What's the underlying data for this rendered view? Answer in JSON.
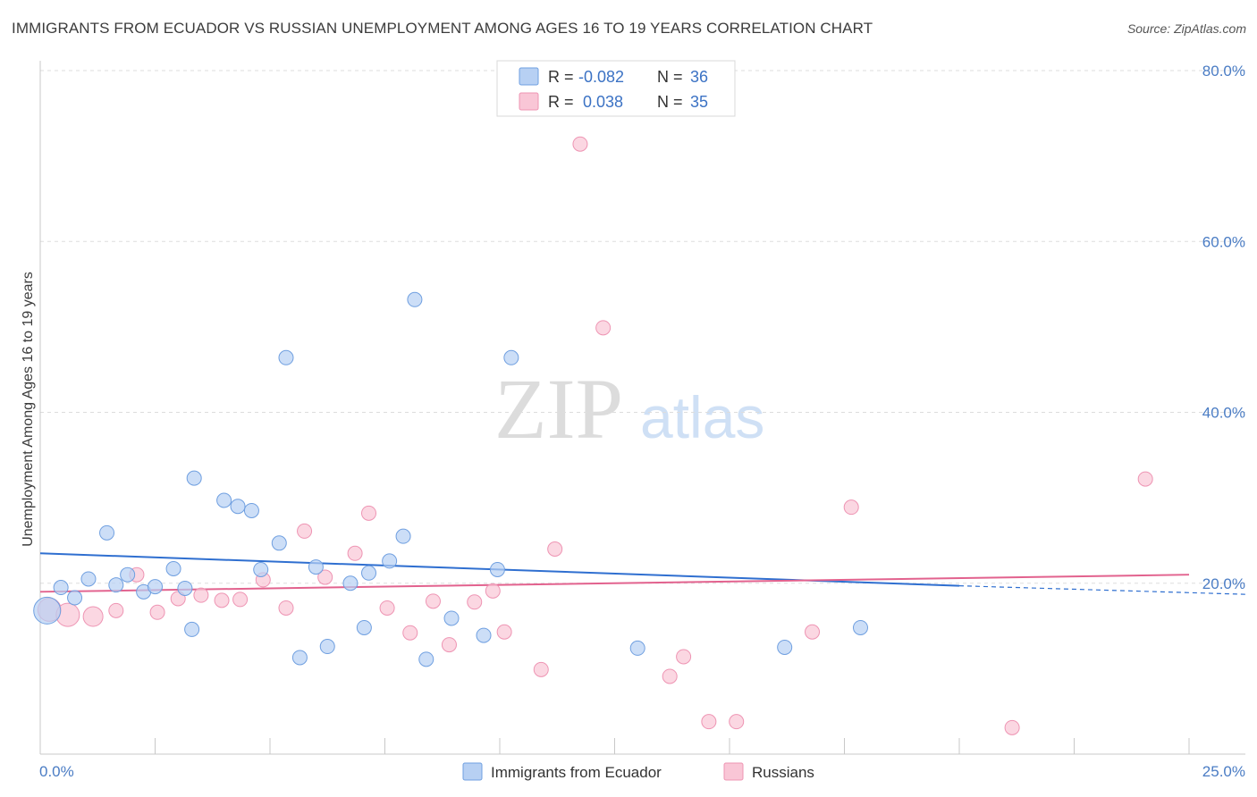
{
  "header": {
    "title": "IMMIGRANTS FROM ECUADOR VS RUSSIAN UNEMPLOYMENT AMONG AGES 16 TO 19 YEARS CORRELATION CHART",
    "source": "Source: ZipAtlas.com"
  },
  "watermark": {
    "zip": "ZIP",
    "atlas": "atlas"
  },
  "legend_box": {
    "rows": [
      {
        "r_label": "R =",
        "r_value": "-0.082",
        "n_label": "N =",
        "n_value": "36"
      },
      {
        "r_label": "R =",
        "r_value": " 0.038",
        "n_label": "N =",
        "n_value": "35"
      }
    ]
  },
  "bottom_legend": {
    "items": [
      "Immigrants from Ecuador",
      "Russians"
    ]
  },
  "colors": {
    "ecuador_fill": "#b7d0f3",
    "ecuador_stroke": "#6f9fe0",
    "ecuador_line": "#2f6fd0",
    "russian_fill": "#f9c6d6",
    "russian_stroke": "#ee94b3",
    "russian_line": "#e2628e",
    "tick_text": "#4a7cc4",
    "grid": "#dddddd"
  },
  "chart_data": {
    "type": "scatter",
    "xlabel": "",
    "ylabel": "Unemployment Among Ages 16 to 19 years",
    "xlim": [
      0,
      25
    ],
    "ylim": [
      0,
      80
    ],
    "y_ticks": [
      {
        "value": 20,
        "label": "20.0%"
      },
      {
        "value": 40,
        "label": "40.0%"
      },
      {
        "value": 60,
        "label": "60.0%"
      },
      {
        "value": 80,
        "label": "80.0%"
      }
    ],
    "x_tick_labels": [
      {
        "value": 0,
        "label": "0.0%"
      },
      {
        "value": 25,
        "label": "25.0%"
      }
    ],
    "x_minor_ticks": [
      2.5,
      5,
      7.5,
      10,
      12.5,
      15,
      17.5,
      20,
      22.5,
      25
    ],
    "grid": true,
    "legend_position": "top-center",
    "series": [
      {
        "name": "Immigrants from Ecuador",
        "r": -0.082,
        "n": 36,
        "trend": {
          "x0": 0,
          "y0": 23.5,
          "x1": 20,
          "y1": 19.7,
          "dash_to_x": 25,
          "dash_to_y": 18.7
        },
        "points": [
          {
            "x": 0.15,
            "y": 16.8,
            "size": "xl"
          },
          {
            "x": 0.45,
            "y": 19.5
          },
          {
            "x": 0.75,
            "y": 18.3
          },
          {
            "x": 1.05,
            "y": 20.5
          },
          {
            "x": 1.45,
            "y": 25.9
          },
          {
            "x": 1.65,
            "y": 19.8
          },
          {
            "x": 1.9,
            "y": 21.0
          },
          {
            "x": 2.25,
            "y": 19.0
          },
          {
            "x": 2.5,
            "y": 19.6
          },
          {
            "x": 2.9,
            "y": 21.7
          },
          {
            "x": 3.15,
            "y": 19.4
          },
          {
            "x": 3.3,
            "y": 14.6
          },
          {
            "x": 3.35,
            "y": 32.3
          },
          {
            "x": 4.0,
            "y": 29.7
          },
          {
            "x": 4.3,
            "y": 29.0
          },
          {
            "x": 4.6,
            "y": 28.5
          },
          {
            "x": 4.8,
            "y": 21.6
          },
          {
            "x": 5.2,
            "y": 24.7
          },
          {
            "x": 5.35,
            "y": 46.4
          },
          {
            "x": 5.65,
            "y": 11.3
          },
          {
            "x": 6.0,
            "y": 21.9
          },
          {
            "x": 6.25,
            "y": 12.6
          },
          {
            "x": 6.75,
            "y": 20.0
          },
          {
            "x": 7.05,
            "y": 14.8
          },
          {
            "x": 7.15,
            "y": 21.2
          },
          {
            "x": 7.6,
            "y": 22.6
          },
          {
            "x": 7.9,
            "y": 25.5
          },
          {
            "x": 8.15,
            "y": 53.2
          },
          {
            "x": 8.4,
            "y": 11.1
          },
          {
            "x": 8.95,
            "y": 15.9
          },
          {
            "x": 9.65,
            "y": 13.9
          },
          {
            "x": 9.95,
            "y": 21.6
          },
          {
            "x": 10.25,
            "y": 46.4
          },
          {
            "x": 13.0,
            "y": 12.4
          },
          {
            "x": 16.2,
            "y": 12.5
          },
          {
            "x": 17.85,
            "y": 14.8
          }
        ]
      },
      {
        "name": "Russians",
        "r": 0.038,
        "n": 35,
        "trend": {
          "x0": 0,
          "y0": 19.0,
          "x1": 25,
          "y1": 21.0
        },
        "points": [
          {
            "x": 0.2,
            "y": 16.9,
            "size": "lg"
          },
          {
            "x": 0.6,
            "y": 16.3,
            "size": "lg"
          },
          {
            "x": 1.15,
            "y": 16.1,
            "size": "md"
          },
          {
            "x": 1.65,
            "y": 16.8
          },
          {
            "x": 2.1,
            "y": 21.0
          },
          {
            "x": 2.55,
            "y": 16.6
          },
          {
            "x": 3.0,
            "y": 18.2
          },
          {
            "x": 3.5,
            "y": 18.6
          },
          {
            "x": 3.95,
            "y": 18.0
          },
          {
            "x": 4.35,
            "y": 18.1
          },
          {
            "x": 4.85,
            "y": 20.4
          },
          {
            "x": 5.35,
            "y": 17.1
          },
          {
            "x": 5.75,
            "y": 26.1
          },
          {
            "x": 6.2,
            "y": 20.7
          },
          {
            "x": 6.85,
            "y": 23.5
          },
          {
            "x": 7.15,
            "y": 28.2
          },
          {
            "x": 7.55,
            "y": 17.1
          },
          {
            "x": 8.05,
            "y": 14.2
          },
          {
            "x": 8.55,
            "y": 17.9
          },
          {
            "x": 8.9,
            "y": 12.8
          },
          {
            "x": 9.45,
            "y": 17.8
          },
          {
            "x": 9.85,
            "y": 19.1
          },
          {
            "x": 10.1,
            "y": 14.3
          },
          {
            "x": 10.9,
            "y": 9.9
          },
          {
            "x": 11.2,
            "y": 24.0
          },
          {
            "x": 11.75,
            "y": 71.4
          },
          {
            "x": 12.25,
            "y": 49.9
          },
          {
            "x": 13.7,
            "y": 9.1
          },
          {
            "x": 14.0,
            "y": 11.4
          },
          {
            "x": 14.55,
            "y": 3.8
          },
          {
            "x": 15.15,
            "y": 3.8
          },
          {
            "x": 16.8,
            "y": 14.3
          },
          {
            "x": 17.65,
            "y": 28.9
          },
          {
            "x": 21.15,
            "y": 3.1
          },
          {
            "x": 24.05,
            "y": 32.2
          }
        ]
      }
    ]
  }
}
